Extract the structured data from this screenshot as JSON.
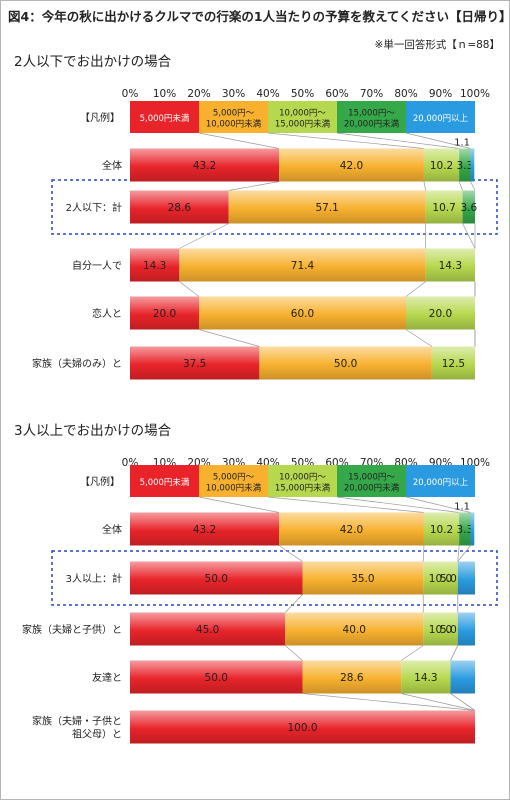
{
  "title": "図4：今年の秋に出かけるクルマでの行楽の1人当たりの予算を教えてください【日帰り】",
  "note": "※単一回答形式【ｎ=88】",
  "legend_row_label": "【凡例】",
  "categories": [
    {
      "label": "5,000円未満",
      "color": "#e8242a"
    },
    {
      "label": "5,000円～\n10,000円未満",
      "color": "#f7b12f"
    },
    {
      "label": "10,000円～\n15,000円未満",
      "color": "#b6d84e"
    },
    {
      "label": "15,000円～\n20,000円未満",
      "color": "#35a84a"
    },
    {
      "label": "20,000円以上",
      "color": "#2a9be0"
    }
  ],
  "chart_data": [
    {
      "type": "bar",
      "orientation": "horizontal",
      "stacked": true,
      "title": "2人以下でお出かけの場合",
      "x_ticks": [
        "0%",
        "10%",
        "20%",
        "30%",
        "40%",
        "50%",
        "60%",
        "70%",
        "80%",
        "90%",
        "100%"
      ],
      "xlim": [
        0,
        100
      ],
      "legend_placement": "top row",
      "series": [
        {
          "name": "5,000円未満",
          "values": [
            43.2,
            28.6,
            14.3,
            20.0,
            37.5
          ]
        },
        {
          "name": "5,000円～10,000円未満",
          "values": [
            42.0,
            57.1,
            71.4,
            60.0,
            50.0
          ]
        },
        {
          "name": "10,000円～15,000円未満",
          "values": [
            10.2,
            10.7,
            14.3,
            20.0,
            12.5
          ]
        },
        {
          "name": "15,000円～20,000円未満",
          "values": [
            3.3,
            3.6,
            0,
            0,
            0
          ]
        },
        {
          "name": "20,000円以上",
          "values": [
            1.1,
            0,
            0,
            0,
            0
          ]
        }
      ],
      "rows": [
        {
          "label": "全体",
          "values": [
            43.2,
            42.0,
            10.2,
            3.3,
            1.1
          ],
          "display": [
            "43.2",
            "42.0",
            "10.2",
            "3.3",
            "1.1"
          ],
          "highlight": false
        },
        {
          "label": "2人以下：計",
          "values": [
            28.6,
            57.1,
            10.7,
            3.6,
            0
          ],
          "display": [
            "28.6",
            "57.1",
            "10.7",
            "3.6",
            ""
          ],
          "highlight": true
        },
        {
          "label": "自分一人で",
          "values": [
            14.3,
            71.4,
            14.3,
            0,
            0
          ],
          "display": [
            "14.3",
            "71.4",
            "14.3",
            "",
            ""
          ],
          "highlight": false
        },
        {
          "label": "恋人と",
          "values": [
            20.0,
            60.0,
            20.0,
            0,
            0
          ],
          "display": [
            "20.0",
            "60.0",
            "20.0",
            "",
            ""
          ],
          "highlight": false
        },
        {
          "label": "家族（夫婦のみ）と",
          "values": [
            37.5,
            50.0,
            12.5,
            0,
            0
          ],
          "display": [
            "37.5",
            "50.0",
            "12.5",
            "",
            ""
          ],
          "highlight": false
        }
      ]
    },
    {
      "type": "bar",
      "orientation": "horizontal",
      "stacked": true,
      "title": "3人以上でお出かけの場合",
      "x_ticks": [
        "0%",
        "10%",
        "20%",
        "30%",
        "40%",
        "50%",
        "60%",
        "70%",
        "80%",
        "90%",
        "100%"
      ],
      "xlim": [
        0,
        100
      ],
      "legend_placement": "top row",
      "series": [
        {
          "name": "5,000円未満",
          "values": [
            43.2,
            50.0,
            45.0,
            50.0,
            100.0
          ]
        },
        {
          "name": "5,000円～10,000円未満",
          "values": [
            42.0,
            35.0,
            40.0,
            28.6,
            0
          ]
        },
        {
          "name": "10,000円～15,000円未満",
          "values": [
            10.2,
            10.0,
            10.0,
            14.3,
            0
          ]
        },
        {
          "name": "15,000円～20,000円未満",
          "values": [
            3.3,
            0,
            0,
            0,
            0
          ]
        },
        {
          "name": "20,000円以上",
          "values": [
            1.1,
            5.0,
            5.0,
            7.1,
            0
          ]
        }
      ],
      "rows": [
        {
          "label": "全体",
          "values": [
            43.2,
            42.0,
            10.2,
            3.3,
            1.1
          ],
          "display": [
            "43.2",
            "42.0",
            "10.2",
            "3.3",
            "1.1"
          ],
          "highlight": false
        },
        {
          "label": "3人以上：計",
          "values": [
            50.0,
            35.0,
            10.0,
            0,
            5.0
          ],
          "display": [
            "50.0",
            "35.0",
            "10.0",
            "",
            "5.0"
          ],
          "highlight": true
        },
        {
          "label": "家族（夫婦と子供）と",
          "values": [
            45.0,
            40.0,
            10.0,
            0,
            5.0
          ],
          "display": [
            "45.0",
            "40.0",
            "10.0",
            "",
            "5.0"
          ],
          "highlight": false
        },
        {
          "label": "友達と",
          "values": [
            50.0,
            28.6,
            14.3,
            0,
            7.1
          ],
          "display": [
            "50.0",
            "28.6",
            "14.3",
            "",
            ""
          ],
          "highlight": false
        },
        {
          "label": "家族（夫婦・子供と\n祖父母）と",
          "values": [
            100.0,
            0,
            0,
            0,
            0
          ],
          "display": [
            "100.0",
            "",
            "",
            "",
            ""
          ],
          "highlight": false
        }
      ]
    }
  ]
}
